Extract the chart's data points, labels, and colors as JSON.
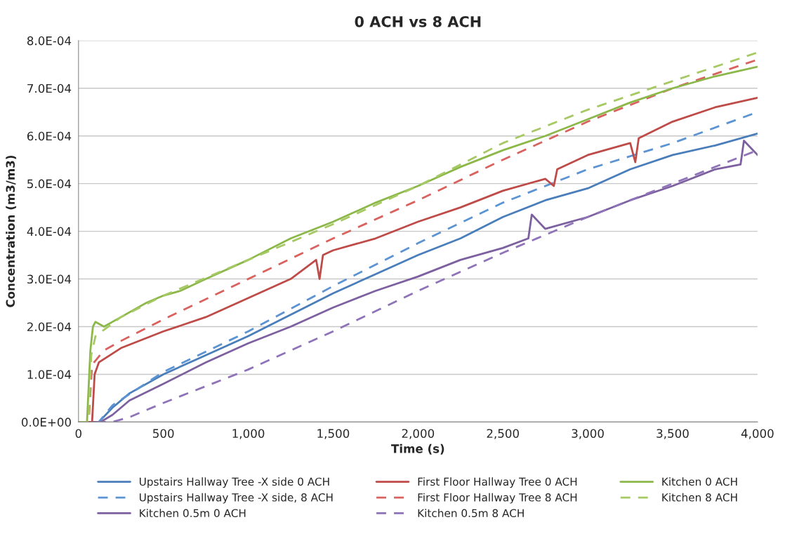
{
  "chart_data": {
    "type": "line",
    "title": "0 ACH vs 8 ACH",
    "xlabel": "Time (s)",
    "ylabel": "Concentration (m3/m3)",
    "xlim": [
      0,
      4000
    ],
    "xticks": [
      0,
      500,
      {
        "value": 1000,
        "label": "1,000"
      },
      {
        "value": 1500,
        "label": "1,500"
      },
      {
        "value": 2000,
        "label": "2,000"
      },
      {
        "value": 2500,
        "label": "2,500"
      },
      {
        "value": 3000,
        "label": "3,000"
      },
      {
        "value": 3500,
        "label": "3,500"
      },
      {
        "value": 4000,
        "label": "4,000"
      }
    ],
    "ylim": [
      0,
      0.0008
    ],
    "yticks": [
      {
        "value": 0,
        "label": "0.0E+00"
      },
      {
        "value": 0.0001,
        "label": "1.0E-04"
      },
      {
        "value": 0.0002,
        "label": "2.0E-04"
      },
      {
        "value": 0.0003,
        "label": "3.0E-04"
      },
      {
        "value": 0.0004,
        "label": "4.0E-04"
      },
      {
        "value": 0.0005,
        "label": "5.0E-04"
      },
      {
        "value": 0.0006,
        "label": "6.0E-04"
      },
      {
        "value": 0.0007,
        "label": "7.0E-04"
      },
      {
        "value": 0.0008,
        "label": "8.0E-04"
      }
    ],
    "grid": "y",
    "legend": "bottom",
    "series": [
      {
        "name": "Upstairs Hallway Tree -X side 0 ACH",
        "color": "#4a7ebb",
        "line_style": "solid",
        "x": [
          0,
          120,
          200,
          300,
          500,
          750,
          1000,
          1250,
          1500,
          1750,
          2000,
          2250,
          2500,
          2750,
          3000,
          3250,
          3500,
          3750,
          4000
        ],
        "values": [
          0,
          0,
          3e-05,
          6e-05,
          0.0001,
          0.00014,
          0.00018,
          0.000225,
          0.00027,
          0.00031,
          0.00035,
          0.000385,
          0.00043,
          0.000465,
          0.00049,
          0.00053,
          0.00056,
          0.00058,
          0.000605
        ]
      },
      {
        "name": "Upstairs Hallway Tree -X side, 8 ACH",
        "color": "#5b93d3",
        "line_style": "dashed",
        "x": [
          0,
          120,
          200,
          500,
          1000,
          1500,
          2000,
          2500,
          3000,
          3500,
          4000
        ],
        "values": [
          0,
          0,
          3.5e-05,
          0.000105,
          0.00019,
          0.000285,
          0.000375,
          0.00046,
          0.00053,
          0.000585,
          0.00065
        ]
      },
      {
        "name": "Kitchen 0.5m 0 ACH",
        "color": "#7d60a0",
        "line_style": "solid",
        "x": [
          0,
          130,
          200,
          300,
          500,
          750,
          1000,
          1250,
          1500,
          1750,
          2000,
          2250,
          2500,
          2650,
          2670,
          2750,
          3000,
          3250,
          3500,
          3750,
          3900,
          3920,
          4000
        ],
        "values": [
          0,
          0,
          1.5e-05,
          4.5e-05,
          8e-05,
          0.000125,
          0.000165,
          0.0002,
          0.00024,
          0.000275,
          0.000305,
          0.00034,
          0.000365,
          0.000385,
          0.000435,
          0.000405,
          0.00043,
          0.000465,
          0.000495,
          0.00053,
          0.00054,
          0.00059,
          0.00056
        ]
      },
      {
        "name": "First Floor Hallway Tree 0 ACH",
        "color": "#be4b48",
        "line_style": "solid",
        "x": [
          0,
          80,
          95,
          120,
          250,
          500,
          750,
          1000,
          1250,
          1400,
          1420,
          1440,
          1500,
          1750,
          2000,
          2250,
          2500,
          2750,
          2800,
          2820,
          3000,
          3250,
          3280,
          3300,
          3500,
          3750,
          4000
        ],
        "values": [
          0,
          0,
          0.0001,
          0.000125,
          0.000155,
          0.00019,
          0.00022,
          0.00026,
          0.0003,
          0.00034,
          0.0003,
          0.00035,
          0.00036,
          0.000385,
          0.00042,
          0.00045,
          0.000485,
          0.00051,
          0.000495,
          0.00053,
          0.00056,
          0.000585,
          0.000545,
          0.000595,
          0.00063,
          0.00066,
          0.00068
        ]
      },
      {
        "name": "First Floor Hallway Tree 8 ACH",
        "color": "#d9625f",
        "line_style": "dashed",
        "x": [
          0,
          60,
          80,
          150,
          250,
          500,
          1000,
          1500,
          2000,
          2500,
          3000,
          3500,
          4000
        ],
        "values": [
          0,
          0,
          0.00012,
          0.00015,
          0.00017,
          0.000215,
          0.0003,
          0.000385,
          0.000465,
          0.00055,
          0.00063,
          0.0007,
          0.00076
        ]
      },
      {
        "name": "Kitchen 0.5m 8 ACH",
        "color": "#8f73b8",
        "line_style": "dashed",
        "x": [
          0,
          200,
          300,
          500,
          1000,
          1500,
          2000,
          2500,
          3000,
          3500,
          4000
        ],
        "values": [
          0,
          0,
          1e-05,
          4e-05,
          0.00011,
          0.00019,
          0.000275,
          0.000355,
          0.00043,
          0.0005,
          0.00057
        ]
      },
      {
        "name": "Kitchen 0 ACH",
        "color": "#8cb84a",
        "line_style": "solid",
        "x": [
          0,
          50,
          70,
          85,
          100,
          150,
          250,
          400,
          500,
          600,
          750,
          1000,
          1250,
          1500,
          1750,
          2000,
          2250,
          2500,
          2750,
          3000,
          3250,
          3500,
          3750,
          4000
        ],
        "values": [
          0,
          0,
          0.00015,
          0.0002,
          0.00021,
          0.0002,
          0.00022,
          0.00025,
          0.000265,
          0.000275,
          0.0003,
          0.00034,
          0.000385,
          0.00042,
          0.00046,
          0.000495,
          0.000535,
          0.00057,
          0.0006,
          0.000635,
          0.00067,
          0.0007,
          0.000725,
          0.000745
        ]
      },
      {
        "name": "Kitchen 8 ACH",
        "color": "#a6c964",
        "line_style": "dashed",
        "x": [
          0,
          60,
          75,
          100,
          250,
          500,
          1000,
          1500,
          2000,
          2500,
          3000,
          3500,
          4000
        ],
        "values": [
          0,
          0,
          0.00014,
          0.00018,
          0.00022,
          0.000265,
          0.00034,
          0.000415,
          0.000495,
          0.000585,
          0.000655,
          0.000715,
          0.000775
        ]
      }
    ]
  }
}
